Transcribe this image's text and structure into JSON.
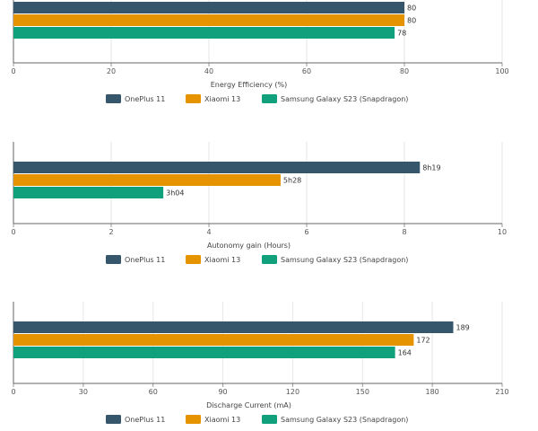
{
  "chart_data": [
    {
      "type": "bar",
      "orientation": "horizontal",
      "xlabel": "Energy Efficiency (%)",
      "xlim": [
        0,
        100
      ],
      "ticks": [
        "0",
        "20",
        "40",
        "60",
        "80",
        "100"
      ],
      "grid": true,
      "legend_position": "bottom",
      "series": [
        {
          "name": "OnePlus 11",
          "value": 80,
          "label": "80",
          "color": "#36566b"
        },
        {
          "name": "Xiaomi 13",
          "value": 80,
          "label": "80",
          "color": "#e59400"
        },
        {
          "name": "Samsung Galaxy S23 (Snapdragon)",
          "value": 78,
          "label": "78",
          "color": "#10a07b"
        }
      ]
    },
    {
      "type": "bar",
      "orientation": "horizontal",
      "xlabel": "Autonomy gain (Hours)",
      "xlim": [
        0,
        10
      ],
      "ticks": [
        "0",
        "2",
        "4",
        "6",
        "8",
        "10"
      ],
      "grid": true,
      "legend_position": "bottom",
      "series": [
        {
          "name": "OnePlus 11",
          "value": 8.3167,
          "label": "8h19",
          "color": "#36566b"
        },
        {
          "name": "Xiaomi 13",
          "value": 5.4667,
          "label": "5h28",
          "color": "#e59400"
        },
        {
          "name": "Samsung Galaxy S23 (Snapdragon)",
          "value": 3.0667,
          "label": "3h04",
          "color": "#10a07b"
        }
      ]
    },
    {
      "type": "bar",
      "orientation": "horizontal",
      "xlabel": "Discharge Current (mA)",
      "xlim": [
        0,
        210
      ],
      "ticks": [
        "0",
        "30",
        "60",
        "90",
        "120",
        "150",
        "180",
        "210"
      ],
      "grid": true,
      "legend_position": "bottom",
      "series": [
        {
          "name": "OnePlus 11",
          "value": 189,
          "label": "189",
          "color": "#36566b"
        },
        {
          "name": "Xiaomi 13",
          "value": 172,
          "label": "172",
          "color": "#e59400"
        },
        {
          "name": "Samsung Galaxy S23 (Snapdragon)",
          "value": 164,
          "label": "164",
          "color": "#10a07b"
        }
      ]
    }
  ]
}
